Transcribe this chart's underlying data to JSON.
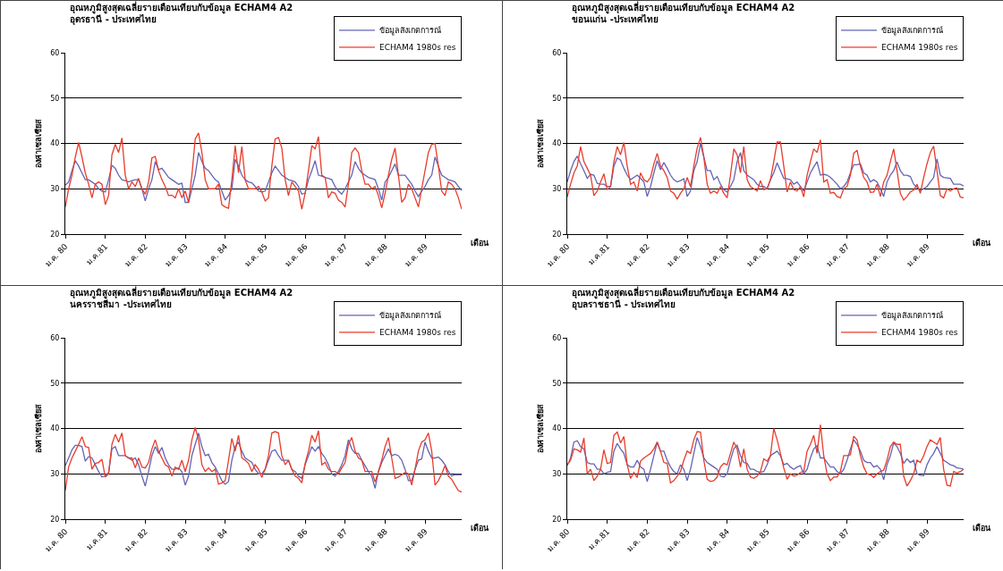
{
  "chart_data": [
    {
      "type": "line",
      "title": "อุณหภูมิสูงสุดเฉลี่ยรายเดือนเทียบกับข้อมูล ECHAM4 A2",
      "subtitle": "อุดรธานี - ประเทศไทย",
      "xlabel": "เดือน",
      "ylabel": "องศาเซลเซียส",
      "ylim": [
        20,
        60
      ],
      "yticks": [
        20,
        30,
        40,
        50,
        60
      ],
      "categories": [
        "ม.ค. 80",
        null,
        null,
        null,
        null,
        null,
        null,
        null,
        null,
        null,
        null,
        null,
        "ม.ค.81",
        null,
        null,
        null,
        null,
        null,
        null,
        null,
        null,
        null,
        null,
        null,
        "ม.ค. 82",
        null,
        null,
        null,
        null,
        null,
        null,
        null,
        null,
        null,
        null,
        null,
        "ม.ค. 83",
        null,
        null,
        null,
        null,
        null,
        null,
        null,
        null,
        null,
        null,
        null,
        "ม.ค. 84",
        null,
        null,
        null,
        null,
        null,
        null,
        null,
        null,
        null,
        null,
        null,
        "ม.ค. 85",
        null,
        null,
        null,
        null,
        null,
        null,
        null,
        null,
        null,
        null,
        null,
        "ม.ค. 86",
        null,
        null,
        null,
        null,
        null,
        null,
        null,
        null,
        null,
        null,
        null,
        "ม.ค. 87",
        null,
        null,
        null,
        null,
        null,
        null,
        null,
        null,
        null,
        null,
        null,
        "ม.ค. 88",
        null,
        null,
        null,
        null,
        null,
        null,
        null,
        null,
        null,
        null,
        null,
        "ม.ค. 89",
        null,
        null,
        null,
        null,
        null,
        null,
        null,
        null,
        null,
        null,
        null
      ],
      "grid": "y",
      "legend": "top right",
      "marker": "none",
      "line_style": "solid",
      "series": [
        {
          "name": "ข้อมูลสังเกตการณ์",
          "color": "#6464b4",
          "values": [
            30.8,
            31.5,
            34,
            36.2,
            35,
            33.5,
            32,
            32,
            31.5,
            31,
            30,
            29.5,
            29.3,
            32,
            35.2,
            34.5,
            33,
            32,
            31.8,
            31.5,
            31.8,
            32,
            32,
            30,
            27.3,
            30,
            32,
            36,
            34.2,
            34.5,
            33.5,
            32.5,
            32,
            31.5,
            31,
            31.2,
            27,
            27,
            30,
            33,
            38,
            36,
            34.5,
            34,
            33,
            32,
            31.5,
            29.5,
            27.5,
            28.5,
            30,
            36.5,
            35,
            33,
            32,
            31.5,
            31.3,
            30.5,
            29.5,
            29.3,
            29.5,
            31.5,
            33.5,
            35,
            34,
            33,
            32.5,
            32,
            31.8,
            31.5,
            30.5,
            28.8,
            29,
            32,
            34,
            36.2,
            33,
            32.8,
            32.5,
            32.3,
            32,
            30.5,
            29.5,
            28.8,
            30,
            31.5,
            33,
            36,
            34.5,
            33.5,
            33,
            32.5,
            32.3,
            32,
            30,
            27.5,
            31.5,
            32.5,
            34,
            35.5,
            33,
            33,
            33,
            32,
            31,
            29.5,
            28.3,
            29.5,
            30.5,
            32,
            33,
            37,
            35,
            33,
            32.5,
            32,
            31.8,
            31.5,
            30.5,
            29.6
          ]
        },
        {
          "name": "ECHAM4 1980s res",
          "color": "#e83c2c",
          "values": [
            26,
            30,
            33,
            37,
            40.2,
            37,
            33.5,
            31,
            28,
            31,
            31.5,
            31,
            26.5,
            28.5,
            37.5,
            39.8,
            38,
            41.2,
            33,
            30,
            31.5,
            30.5,
            32.3,
            30,
            28.8,
            31.5,
            36.8,
            37.1,
            34,
            32,
            30.5,
            28.5,
            28.6,
            28,
            30,
            28,
            29.5,
            27,
            33,
            41,
            42.3,
            38,
            32,
            30,
            30,
            30,
            31,
            26.5,
            26,
            25.7,
            32,
            39.5,
            33.5,
            39.3,
            32,
            30,
            30,
            30,
            30.5,
            29.3,
            27.3,
            28,
            35,
            41,
            41.3,
            39,
            32,
            28.5,
            31.5,
            30.5,
            29.5,
            25.5,
            29,
            34,
            39.5,
            38.8,
            41.5,
            33,
            32.5,
            28,
            29.3,
            29,
            27.5,
            27,
            26,
            31,
            38,
            39,
            38,
            34,
            31,
            31,
            30,
            30.5,
            28.5,
            25.8,
            29,
            33,
            36.5,
            39,
            33,
            27,
            28,
            31,
            30,
            28,
            26,
            30,
            34,
            38,
            39.8,
            40,
            35,
            29.5,
            28.5,
            31.5,
            31,
            30,
            28,
            25.5
          ]
        }
      ]
    },
    {
      "type": "line",
      "title": "อุณหภูมิสูงสุดเฉลี่ยรายเดือนเทียบกับข้อมูล ECHAM4 A2",
      "subtitle": "ขอนแก่น -ประเทศไทย",
      "xlabel": "เดือน",
      "ylabel": "องศาเซลเซียส",
      "ylim": [
        20,
        60
      ],
      "yticks": [
        20,
        30,
        40,
        50,
        60
      ],
      "categories": [
        "ม.ค. 80",
        null,
        null,
        null,
        null,
        null,
        null,
        null,
        null,
        null,
        null,
        null,
        "ม.ค.81",
        null,
        null,
        null,
        null,
        null,
        null,
        null,
        null,
        null,
        null,
        null,
        "ม.ค. 82",
        null,
        null,
        null,
        null,
        null,
        null,
        null,
        null,
        null,
        null,
        null,
        "ม.ค. 83",
        null,
        null,
        null,
        null,
        null,
        null,
        null,
        null,
        null,
        null,
        null,
        "ม.ค. 84",
        null,
        null,
        null,
        null,
        null,
        null,
        null,
        null,
        null,
        null,
        null,
        "ม.ค. 85",
        null,
        null,
        null,
        null,
        null,
        null,
        null,
        null,
        null,
        null,
        null,
        "ม.ค. 86",
        null,
        null,
        null,
        null,
        null,
        null,
        null,
        null,
        null,
        null,
        null,
        "ม.ค. 87",
        null,
        null,
        null,
        null,
        null,
        null,
        null,
        null,
        null,
        null,
        null,
        "ม.ค. 88",
        null,
        null,
        null,
        null,
        null,
        null,
        null,
        null,
        null,
        null,
        null,
        "ม.ค. 89",
        null,
        null,
        null,
        null,
        null,
        null,
        null,
        null,
        null,
        null,
        null
      ],
      "grid": "y",
      "legend": "top right",
      "marker": "none",
      "line_style": "solid",
      "series": [
        {
          "name": "ข้อมูลสังเกตการณ์",
          "color": "#6464b4",
          "values": [
            31.5,
            34,
            36,
            37.2,
            35.5,
            34,
            32.3,
            33.2,
            33,
            31.2,
            31,
            31,
            30.5,
            30.5,
            35,
            36.8,
            36.3,
            34.5,
            33,
            32,
            32.5,
            33,
            32.3,
            31.5,
            28.3,
            30.5,
            33.5,
            36.2,
            34.2,
            35.8,
            34.5,
            33,
            32,
            31.5,
            31.8,
            32.2,
            28.3,
            29.5,
            34,
            36,
            40,
            37,
            34,
            34,
            32,
            32.7,
            31,
            29.8,
            29.3,
            30.5,
            32,
            36,
            38,
            34,
            33,
            32.5,
            32,
            31,
            30.5,
            30.5,
            30,
            32,
            33.5,
            35.7,
            34,
            32.3,
            32.2,
            32,
            31,
            31.5,
            30.5,
            29.5,
            31.5,
            33.5,
            34.8,
            36,
            33,
            33.2,
            33,
            32.5,
            31.8,
            31,
            30,
            30.5,
            31.5,
            33.5,
            35.3,
            35.3,
            35.5,
            33.5,
            33,
            31.5,
            32,
            31.5,
            30,
            28.3,
            31.5,
            33,
            34,
            35.9,
            34,
            33,
            33,
            32.7,
            31,
            30.3,
            29.6,
            30,
            30.5,
            31.5,
            32.5,
            36.6,
            33,
            32.5,
            32.4,
            32.3,
            31,
            31,
            31,
            30.6
          ]
        },
        {
          "name": "ECHAM4 1980s res",
          "color": "#e83c2c",
          "values": [
            28.2,
            31,
            33.5,
            35,
            39.3,
            36,
            34.5,
            33,
            28.5,
            29.5,
            31.5,
            33.3,
            29.8,
            30.5,
            36,
            39.3,
            37.5,
            40.2,
            35,
            31,
            31.5,
            29.5,
            33.5,
            32,
            31.5,
            32.5,
            35.5,
            37.8,
            35,
            34,
            32.5,
            29.5,
            29,
            27.7,
            29,
            30,
            32.5,
            30.5,
            35,
            39,
            41.3,
            37,
            31,
            29,
            29.5,
            29,
            30.5,
            29,
            28,
            33,
            38.8,
            37.5,
            33.5,
            39.3,
            32,
            30.5,
            30,
            29.5,
            31.8,
            29.8,
            30,
            32,
            36,
            40.3,
            40.3,
            35,
            29.3,
            31.5,
            29.8,
            29.5,
            30.5,
            28.2,
            33,
            36,
            38.8,
            38,
            40.8,
            31.5,
            32,
            29,
            29.2,
            28.3,
            28,
            30,
            30.5,
            33,
            37.8,
            38.5,
            35,
            32.5,
            31.5,
            29.2,
            29.3,
            31,
            28.3,
            31.5,
            33,
            36,
            38.8,
            34,
            29,
            27.5,
            28.3,
            29.3,
            29.7,
            31,
            29,
            32.5,
            35.5,
            38,
            39.4,
            34,
            28.5,
            28,
            30,
            29.5,
            30,
            30.2,
            28.2,
            28
          ]
        }
      ]
    },
    {
      "type": "line",
      "title": "อุณหภูมิสูงสุดเฉลี่ยรายเดือนเทียบกับข้อมูล ECHAM4 A2",
      "subtitle": "นครราชสีมา -ประเทศไทย",
      "xlabel": "เดือน",
      "ylabel": "องศาเซลเซียส",
      "ylim": [
        20,
        60
      ],
      "yticks": [
        20,
        30,
        40,
        50,
        60
      ],
      "categories": [
        "ม.ค. 80",
        null,
        null,
        null,
        null,
        null,
        null,
        null,
        null,
        null,
        null,
        null,
        "ม.ค.81",
        null,
        null,
        null,
        null,
        null,
        null,
        null,
        null,
        null,
        null,
        null,
        "ม.ค. 82",
        null,
        null,
        null,
        null,
        null,
        null,
        null,
        null,
        null,
        null,
        null,
        "ม.ค. 83",
        null,
        null,
        null,
        null,
        null,
        null,
        null,
        null,
        null,
        null,
        null,
        "ม.ค. 84",
        null,
        null,
        null,
        null,
        null,
        null,
        null,
        null,
        null,
        null,
        null,
        "ม.ค. 85",
        null,
        null,
        null,
        null,
        null,
        null,
        null,
        null,
        null,
        null,
        null,
        "ม.ค. 86",
        null,
        null,
        null,
        null,
        null,
        null,
        null,
        null,
        null,
        null,
        null,
        "ม.ค. 87",
        null,
        null,
        null,
        null,
        null,
        null,
        null,
        null,
        null,
        null,
        null,
        "ม.ค. 88",
        null,
        null,
        null,
        null,
        null,
        null,
        null,
        null,
        null,
        null,
        null,
        "ม.ค. 89",
        null,
        null,
        null,
        null,
        null,
        null,
        null,
        null,
        null,
        null,
        null
      ],
      "grid": "y",
      "legend": "top right",
      "marker": "none",
      "line_style": "solid",
      "series": [
        {
          "name": "ข้อมูลสังเกตการณ์",
          "color": "#6464b4",
          "values": [
            31.8,
            33.5,
            35.3,
            36.3,
            36.3,
            36,
            32.8,
            33.8,
            33.5,
            32,
            30.5,
            29.3,
            29.5,
            30.3,
            35.5,
            36,
            34,
            34,
            34,
            33.5,
            33,
            33.5,
            32,
            29.5,
            27.3,
            30.5,
            34,
            36,
            34.5,
            35.8,
            33.5,
            32,
            31,
            31,
            31.3,
            30.5,
            27.5,
            29.5,
            34,
            36.5,
            39,
            36,
            34,
            34.3,
            32.5,
            31.5,
            30,
            28.5,
            27.7,
            28.3,
            33,
            36,
            37,
            35,
            33.5,
            33,
            32.5,
            31,
            30,
            30,
            31,
            33,
            35,
            35.3,
            34,
            33,
            33,
            33,
            31,
            30.5,
            29.5,
            29,
            32,
            34,
            36,
            35,
            36,
            34.5,
            33.5,
            32,
            30,
            29.5,
            30.5,
            32,
            34,
            37.5,
            35.5,
            34.5,
            34.5,
            33,
            31.8,
            30.5,
            29.5,
            26.8,
            30.5,
            32.5,
            34,
            35.5,
            34,
            34.3,
            34,
            33,
            31,
            28.5,
            28.5,
            31,
            33,
            33.3,
            37,
            35,
            33.5,
            33.5,
            33.7,
            33,
            32,
            30.5,
            29.5,
            29.8,
            29.8,
            29.8
          ]
        },
        {
          "name": "ECHAM4 1980s res",
          "color": "#e83c2c",
          "values": [
            26.3,
            31.5,
            33.5,
            35,
            36.5,
            38.2,
            36,
            35.8,
            31,
            32.3,
            32.5,
            33.2,
            29.3,
            30,
            36.5,
            38.7,
            37,
            39,
            34,
            33.5,
            33.5,
            31.3,
            33.5,
            31.5,
            31.3,
            32.5,
            35.5,
            37.5,
            35,
            33.5,
            32,
            31.5,
            29.5,
            31.5,
            31,
            33,
            30.5,
            33,
            37.5,
            40.2,
            37.5,
            32,
            30.5,
            31.3,
            30.5,
            31,
            27.7,
            28,
            28.5,
            33,
            37.8,
            35,
            38.5,
            33.5,
            33,
            32.3,
            30.5,
            32,
            31,
            29.2,
            31,
            34,
            39,
            39.3,
            39,
            34,
            32,
            33,
            31,
            29.5,
            29,
            28,
            32.3,
            35,
            38.5,
            37,
            39.5,
            32,
            32.5,
            31,
            30.5,
            30.5,
            30,
            31.3,
            32.5,
            36.5,
            38,
            35,
            33.5,
            33,
            30.5,
            30.5,
            30.5,
            28.2,
            30.5,
            33,
            36,
            38,
            33.5,
            29,
            29.3,
            29.8,
            30.3,
            30,
            27.5,
            31,
            35,
            37,
            37.5,
            39,
            35,
            27.5,
            28.5,
            30,
            31.8,
            29.5,
            28.8,
            27.5,
            26.3,
            26
          ]
        }
      ]
    },
    {
      "type": "line",
      "title": "อุณหภูมิสูงสุดเฉลี่ยรายเดือนเทียบกับข้อมูล ECHAM4 A2",
      "subtitle": "อุบลราชธานี - ประเทศไทย",
      "xlabel": "เดือน",
      "ylabel": "องศาเซลเซียส",
      "ylim": [
        20,
        60
      ],
      "yticks": [
        20,
        30,
        40,
        50,
        60
      ],
      "categories": [
        "ม.ค. 80",
        null,
        null,
        null,
        null,
        null,
        null,
        null,
        null,
        null,
        null,
        null,
        "ม.ค.81",
        null,
        null,
        null,
        null,
        null,
        null,
        null,
        null,
        null,
        null,
        null,
        "ม.ค. 82",
        null,
        null,
        null,
        null,
        null,
        null,
        null,
        null,
        null,
        null,
        null,
        "ม.ค. 83",
        null,
        null,
        null,
        null,
        null,
        null,
        null,
        null,
        null,
        null,
        null,
        "ม.ค. 84",
        null,
        null,
        null,
        null,
        null,
        null,
        null,
        null,
        null,
        null,
        null,
        "ม.ค. 85",
        null,
        null,
        null,
        null,
        null,
        null,
        null,
        null,
        null,
        null,
        null,
        "ม.ค. 86",
        null,
        null,
        null,
        null,
        null,
        null,
        null,
        null,
        null,
        null,
        null,
        "ม.ค. 87",
        null,
        null,
        null,
        null,
        null,
        null,
        null,
        null,
        null,
        null,
        null,
        "ม.ค. 88",
        null,
        null,
        null,
        null,
        null,
        null,
        null,
        null,
        null,
        null,
        null,
        "ม.ค. 89",
        null,
        null,
        null,
        null,
        null,
        null,
        null,
        null,
        null,
        null,
        null
      ],
      "grid": "y",
      "legend": "top right",
      "marker": "none",
      "line_style": "solid",
      "series": [
        {
          "name": "ข้อมูลสังเกตการณ์",
          "color": "#6464b4",
          "values": [
            31.8,
            33.5,
            37,
            37.3,
            36,
            35.5,
            32.5,
            32.2,
            32.2,
            31,
            31,
            30,
            30.3,
            30.5,
            35,
            36.7,
            35.5,
            34.5,
            32,
            31.5,
            31.5,
            33,
            31.5,
            31,
            28.3,
            31,
            34,
            37,
            35,
            35,
            33,
            31.5,
            30.5,
            30,
            32,
            31,
            28.5,
            31,
            34.5,
            38,
            36,
            33.5,
            32.5,
            32,
            31.5,
            31,
            29.5,
            29.3,
            30,
            33,
            35.5,
            36.3,
            34,
            32.5,
            32.3,
            31,
            31,
            30.5,
            30.3,
            30.5,
            32,
            34,
            34.5,
            35,
            34,
            32,
            32.3,
            31.5,
            31,
            31.5,
            31.8,
            30,
            31,
            33.5,
            35.5,
            36.2,
            33.5,
            33.5,
            32.5,
            31.5,
            31.5,
            30.5,
            30,
            31,
            33,
            35.5,
            37.5,
            36.5,
            35,
            33,
            32.5,
            32.5,
            31.5,
            31.8,
            31,
            28.7,
            32,
            34,
            36.8,
            36,
            34.5,
            32.3,
            33.3,
            32.5,
            33,
            30,
            29.7,
            29.6,
            32,
            33.5,
            34.5,
            36,
            34.5,
            33,
            32.5,
            32,
            31.8,
            31.3,
            31.2,
            31
          ]
        },
        {
          "name": "ECHAM4 1980s res",
          "color": "#e83c2c",
          "values": [
            32,
            33,
            35.5,
            35.3,
            34.8,
            37.9,
            30,
            31,
            28.5,
            29.5,
            31,
            35.3,
            32.3,
            32.5,
            38.5,
            39.2,
            36.8,
            38.2,
            32,
            29,
            30.3,
            29.2,
            32.8,
            33.5,
            34,
            34.5,
            35.5,
            37,
            35,
            32.5,
            32.3,
            28,
            28.5,
            29.5,
            30.5,
            33,
            35,
            34.5,
            37.5,
            39.3,
            39.2,
            33,
            28.8,
            28.3,
            28.5,
            29.3,
            31.5,
            32.3,
            32,
            34.5,
            37,
            35.5,
            31.5,
            35.5,
            31,
            29.3,
            29,
            29.5,
            30.5,
            33.3,
            32.8,
            34,
            40,
            37.5,
            34.5,
            31.3,
            28.8,
            30,
            29.5,
            29.7,
            30.3,
            30.5,
            35,
            36.5,
            38.5,
            34.5,
            40.8,
            34,
            30,
            28.5,
            29.3,
            29.3,
            30.5,
            34,
            34,
            34.2,
            38.3,
            37.5,
            34,
            31.5,
            30,
            29.8,
            29.2,
            30,
            30.5,
            30.8,
            33,
            36,
            37,
            36.5,
            36.5,
            29.5,
            27.3,
            28.5,
            30,
            33,
            32.5,
            34,
            36,
            37.5,
            37,
            36.5,
            38,
            31,
            27.5,
            27.3,
            30.5,
            30.2,
            30.5,
            31
          ]
        }
      ]
    }
  ]
}
